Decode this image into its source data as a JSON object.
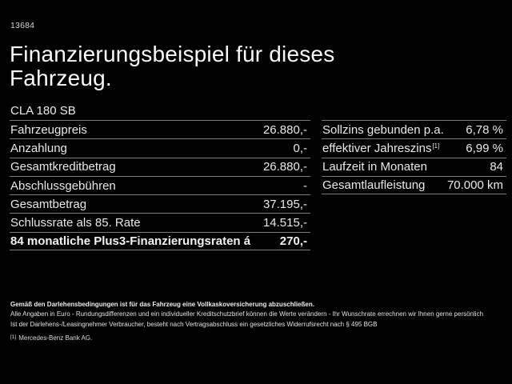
{
  "page": {
    "ref_number": "13684",
    "title": "Finanzierungsbeispiel für dieses Fahrzeug.",
    "model": "CLA 180 SB"
  },
  "finance_table": {
    "rows": [
      {
        "label": "Fahrzeugpreis",
        "value": "26.880,-"
      },
      {
        "label": "Anzahlung",
        "value": "0,-"
      },
      {
        "label": "Gesamtkreditbetrag",
        "value": "26.880,-"
      },
      {
        "label": "Abschlussgebühren",
        "value": "-"
      },
      {
        "label": "Gesamtbetrag",
        "value": "37.195,-"
      },
      {
        "label": "Schlussrate als 85. Rate",
        "value": "14.515,-"
      },
      {
        "label": "84 monatliche Plus3-Finanzierungsraten á",
        "value": "270,-",
        "emphasis": true
      }
    ]
  },
  "rates_table": {
    "rows": [
      {
        "label": "Sollzins gebunden p.a.",
        "value": "6,78 %"
      },
      {
        "label": "effektiver Jahreszins",
        "sup": "[1]",
        "value": "6,99 %"
      },
      {
        "label": "Laufzeit in Monaten",
        "value": "84"
      },
      {
        "label": "Gesamtlaufleistung",
        "value": "70.000 km"
      }
    ]
  },
  "footer": {
    "insurance_note": "Gemäß den Darlehensbedingungen ist für das Fahrzeug eine Vollkaskoversicherung abzuschließen.",
    "disclaimer_line1": "Alle Angaben in Euro - Rundungsdifferenzen und ein individueller Kreditschutzbrief können die Werte verändern - Ihr Wunschrate errechnen wir Ihnen gerne persönlich",
    "disclaimer_line2": "Ist der Darlehens-/Leasingnehmer Verbraucher, besteht nach Vertragsabschluss ein gesetzliches Widerrufsrecht nach § 495 BGB",
    "footnote_marker": "[1]",
    "footnote_text": "Mercedes-Benz Bank AG."
  },
  "colors": {
    "background": "#000000",
    "text": "#ededed",
    "separator": "#7b7b7b"
  }
}
